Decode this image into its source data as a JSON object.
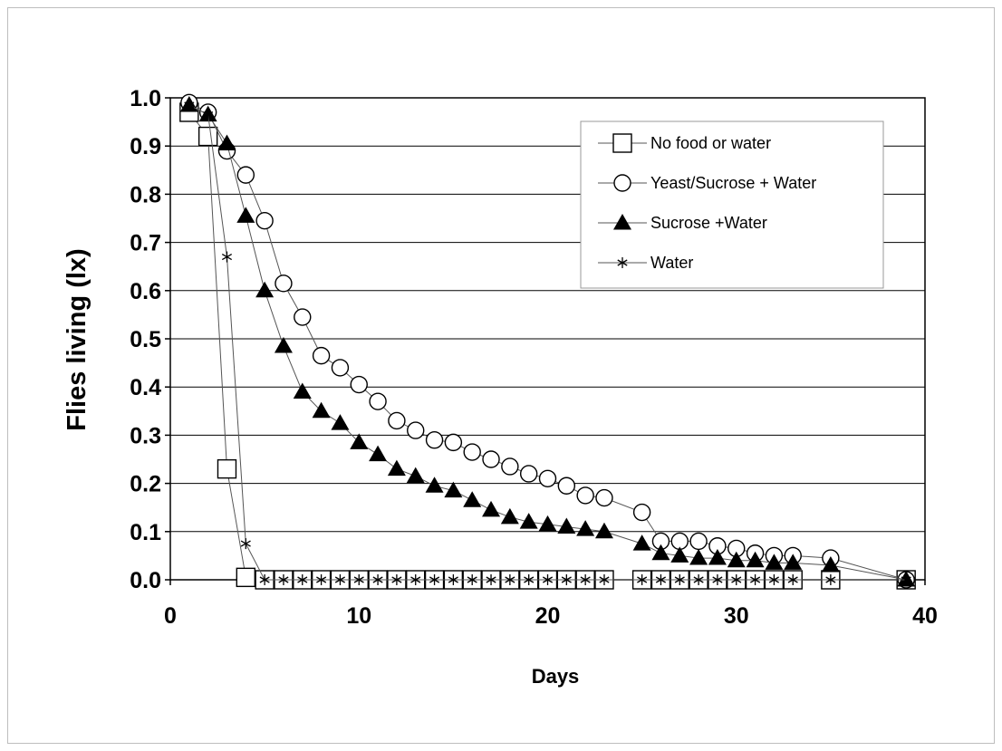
{
  "chart_data": {
    "type": "line",
    "title": "",
    "xlabel": "Days",
    "ylabel": "Flies living (lx)",
    "xlim": [
      0,
      40
    ],
    "ylim": [
      0.0,
      1.0
    ],
    "xticks": [
      "0",
      "10",
      "20",
      "30",
      "40"
    ],
    "yticks": [
      "0.0",
      "0.1",
      "0.2",
      "0.3",
      "0.4",
      "0.5",
      "0.6",
      "0.7",
      "0.8",
      "0.9",
      "1.0"
    ],
    "grid": "horizontal",
    "legend_position": "top-right",
    "series": [
      {
        "name": "No food or water",
        "marker": "open-square",
        "x": [
          1,
          2,
          3,
          4,
          5,
          6,
          7,
          8,
          9,
          10,
          11,
          12,
          13,
          14,
          15,
          16,
          17,
          18,
          19,
          20,
          21,
          22,
          23,
          25,
          26,
          27,
          28,
          29,
          30,
          31,
          32,
          33,
          35,
          39
        ],
        "y": [
          0.97,
          0.92,
          0.23,
          0.005,
          0,
          0,
          0,
          0,
          0,
          0,
          0,
          0,
          0,
          0,
          0,
          0,
          0,
          0,
          0,
          0,
          0,
          0,
          0,
          0,
          0,
          0,
          0,
          0,
          0,
          0,
          0,
          0,
          0,
          0
        ]
      },
      {
        "name": "Yeast/Sucrose + Water",
        "marker": "open-circle",
        "x": [
          1,
          2,
          3,
          4,
          5,
          6,
          7,
          8,
          9,
          10,
          11,
          12,
          13,
          14,
          15,
          16,
          17,
          18,
          19,
          20,
          21,
          22,
          23,
          25,
          26,
          27,
          28,
          29,
          30,
          31,
          32,
          33,
          35,
          39
        ],
        "y": [
          0.99,
          0.97,
          0.89,
          0.84,
          0.745,
          0.615,
          0.545,
          0.465,
          0.44,
          0.405,
          0.37,
          0.33,
          0.31,
          0.29,
          0.285,
          0.265,
          0.25,
          0.235,
          0.22,
          0.21,
          0.195,
          0.175,
          0.17,
          0.14,
          0.08,
          0.08,
          0.08,
          0.07,
          0.065,
          0.055,
          0.05,
          0.05,
          0.045,
          0.0
        ]
      },
      {
        "name": "Sucrose +Water",
        "marker": "filled-triangle",
        "x": [
          1,
          2,
          3,
          4,
          5,
          6,
          7,
          8,
          9,
          10,
          11,
          12,
          13,
          14,
          15,
          16,
          17,
          18,
          19,
          20,
          21,
          22,
          23,
          25,
          26,
          27,
          28,
          29,
          30,
          31,
          32,
          33,
          35,
          39
        ],
        "y": [
          0.985,
          0.965,
          0.905,
          0.755,
          0.6,
          0.485,
          0.39,
          0.35,
          0.325,
          0.285,
          0.26,
          0.23,
          0.215,
          0.195,
          0.185,
          0.165,
          0.145,
          0.13,
          0.12,
          0.115,
          0.11,
          0.105,
          0.1,
          0.075,
          0.055,
          0.05,
          0.045,
          0.045,
          0.04,
          0.04,
          0.035,
          0.035,
          0.03,
          0.0
        ]
      },
      {
        "name": "Water",
        "marker": "asterisk",
        "x": [
          1,
          2,
          3,
          4,
          5,
          6,
          7,
          8,
          9,
          10,
          11,
          12,
          13,
          14,
          15,
          16,
          17,
          18,
          19,
          20,
          21,
          22,
          23,
          25,
          26,
          27,
          28,
          29,
          30,
          31,
          32,
          33,
          35,
          39
        ],
        "y": [
          0.985,
          0.965,
          0.67,
          0.075,
          0,
          0,
          0,
          0,
          0,
          0,
          0,
          0,
          0,
          0,
          0,
          0,
          0,
          0,
          0,
          0,
          0,
          0,
          0,
          0,
          0,
          0,
          0,
          0,
          0,
          0,
          0,
          0,
          0,
          0
        ]
      }
    ]
  }
}
